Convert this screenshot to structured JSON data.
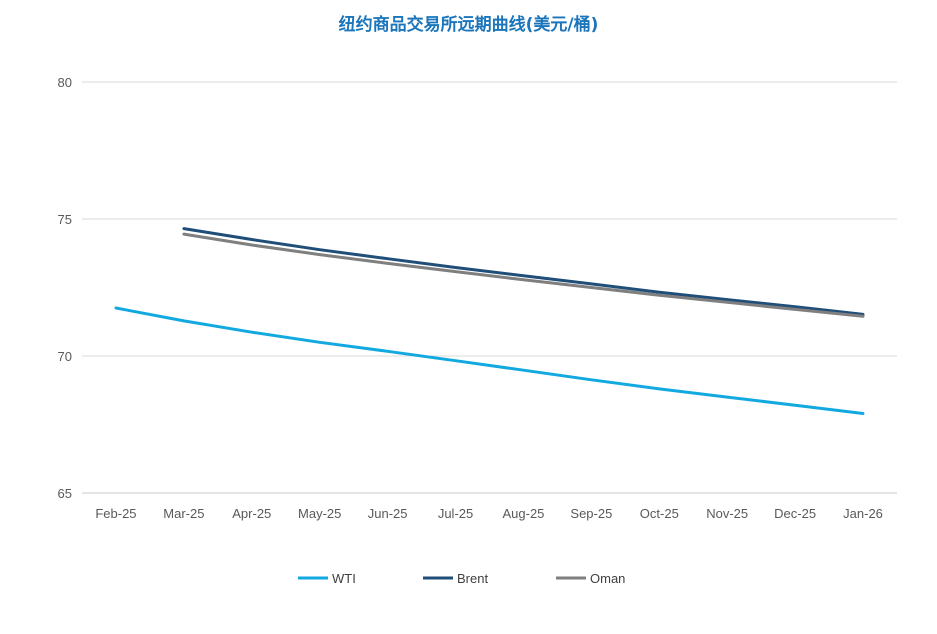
{
  "chart_data": {
    "type": "line",
    "title": "纽约商品交易所远期曲线(美元/桶)",
    "xlabel": "",
    "ylabel": "",
    "categories": [
      "Feb-25",
      "Mar-25",
      "Apr-25",
      "May-25",
      "Jun-25",
      "Jul-25",
      "Aug-25",
      "Sep-25",
      "Oct-25",
      "Nov-25",
      "Dec-25",
      "Jan-26"
    ],
    "yticks": [
      65,
      70,
      75,
      80
    ],
    "ylim": [
      65,
      80
    ],
    "grid": true,
    "legend_position": "bottom",
    "series": [
      {
        "name": "WTI",
        "color": "#12a9e0",
        "values": [
          71.75,
          71.28,
          70.87,
          70.5,
          70.17,
          69.83,
          69.48,
          69.13,
          68.8,
          68.5,
          68.2,
          67.9
        ]
      },
      {
        "name": "Brent",
        "color": "#1f4e79",
        "values": [
          null,
          74.65,
          74.25,
          73.88,
          73.55,
          73.23,
          72.93,
          72.63,
          72.33,
          72.06,
          71.8,
          71.52
        ]
      },
      {
        "name": "Oman",
        "color": "#7f7f7f",
        "values": [
          null,
          74.45,
          74.05,
          73.7,
          73.38,
          73.08,
          72.78,
          72.5,
          72.22,
          71.96,
          71.7,
          71.45
        ]
      }
    ]
  }
}
